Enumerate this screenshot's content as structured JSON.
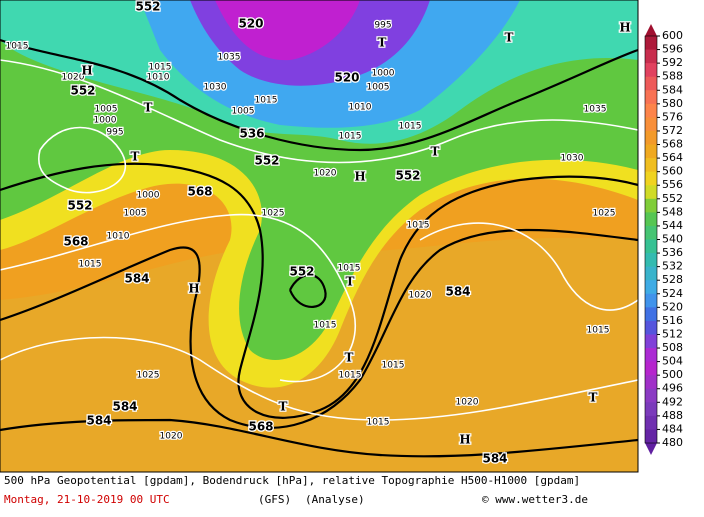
{
  "map": {
    "geopotential_labels": [
      "552",
      "520",
      "520",
      "552",
      "536",
      "552",
      "552",
      "552",
      "568",
      "568",
      "552",
      "584",
      "584",
      "584",
      "584",
      "568",
      "584"
    ],
    "pressure_labels": [
      "1015",
      "1020",
      "1010",
      "1015",
      "1005",
      "1000",
      "995",
      "1000",
      "1005",
      "1010",
      "1015",
      "1025",
      "1020",
      "1015",
      "1010",
      "1015",
      "1005",
      "1000",
      "995",
      "1035",
      "1030",
      "1005",
      "1015",
      "1035",
      "1030",
      "1025",
      "1015",
      "1015",
      "1020",
      "1015",
      "1015",
      "1015",
      "1015",
      "1025",
      "1020",
      "1015",
      "1020"
    ],
    "centers": [
      "H",
      "T",
      "T",
      "H",
      "T",
      "T",
      "H",
      "T",
      "H",
      "T",
      "T",
      "T",
      "T",
      "H"
    ]
  },
  "colorbar": {
    "labels": [
      "600",
      "596",
      "592",
      "588",
      "584",
      "580",
      "576",
      "572",
      "568",
      "564",
      "560",
      "556",
      "552",
      "548",
      "544",
      "540",
      "536",
      "532",
      "528",
      "524",
      "520",
      "516",
      "512",
      "508",
      "504",
      "500",
      "496",
      "492",
      "488",
      "484",
      "480"
    ]
  },
  "footer": {
    "description": "500 hPa Geopotential [gpdam], Bodendruck [hPa], relative Topographie H500-H1000 [gpdam]",
    "date": "Montag, 21-10-2019  00 UTC",
    "model": "(GFS)",
    "analysis": "(Analyse)",
    "copyright": "© www.wetter3.de"
  }
}
